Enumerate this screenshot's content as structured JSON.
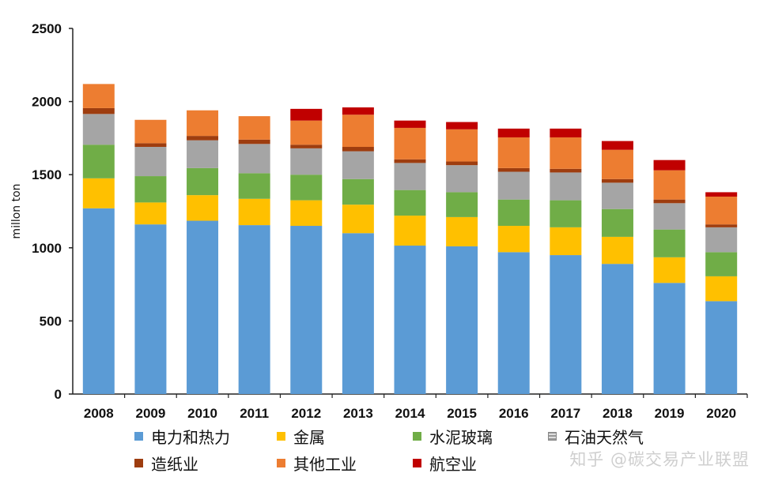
{
  "chart_data": {
    "type": "bar",
    "stacked": true,
    "categories": [
      "2008",
      "2009",
      "2010",
      "2011",
      "2012",
      "2013",
      "2014",
      "2015",
      "2016",
      "2017",
      "2018",
      "2019",
      "2020"
    ],
    "ylabel": "millon ton",
    "ylim": [
      0,
      2500
    ],
    "yticks": [
      "0",
      "500",
      "1000",
      "1500",
      "2000",
      "2500"
    ],
    "series": [
      {
        "name": "电力和热力",
        "color": "#5b9bd5",
        "values": [
          1270,
          1160,
          1185,
          1155,
          1150,
          1100,
          1015,
          1010,
          970,
          950,
          890,
          760,
          635
        ]
      },
      {
        "name": "金属",
        "color": "#ffc000",
        "values": [
          205,
          150,
          175,
          180,
          175,
          195,
          205,
          200,
          180,
          190,
          185,
          175,
          170
        ]
      },
      {
        "name": "水泥玻璃",
        "color": "#70ad47",
        "values": [
          230,
          180,
          185,
          175,
          175,
          175,
          175,
          170,
          180,
          185,
          190,
          190,
          165
        ]
      },
      {
        "name": "石油天然气",
        "color": "#a5a5a5",
        "values": [
          210,
          200,
          190,
          200,
          180,
          190,
          185,
          185,
          190,
          190,
          180,
          180,
          170
        ]
      },
      {
        "name": "造纸业",
        "color": "#9e3d0f",
        "values": [
          40,
          25,
          30,
          30,
          25,
          30,
          25,
          25,
          25,
          25,
          25,
          25,
          20
        ]
      },
      {
        "name": "其他工业",
        "color": "#ed7d31",
        "values": [
          165,
          160,
          175,
          160,
          165,
          220,
          215,
          220,
          210,
          215,
          200,
          200,
          190
        ]
      },
      {
        "name": "航空业",
        "color": "#c00000",
        "values": [
          0,
          0,
          0,
          0,
          80,
          50,
          50,
          50,
          60,
          60,
          60,
          70,
          30
        ]
      }
    ],
    "legend_position": "bottom",
    "grid": false
  },
  "legend": [
    {
      "label": "电力和热力",
      "icon": "square-icon"
    },
    {
      "label": "金属",
      "icon": "square-icon"
    },
    {
      "label": "水泥玻璃",
      "icon": "square-icon"
    },
    {
      "label": "石油天然气",
      "icon": "hatched-square-icon"
    },
    {
      "label": "造纸业",
      "icon": "square-icon"
    },
    {
      "label": "其他工业",
      "icon": "square-icon"
    },
    {
      "label": "航空业",
      "icon": "square-icon"
    }
  ],
  "watermark": "知乎 @碳交易产业联盟"
}
